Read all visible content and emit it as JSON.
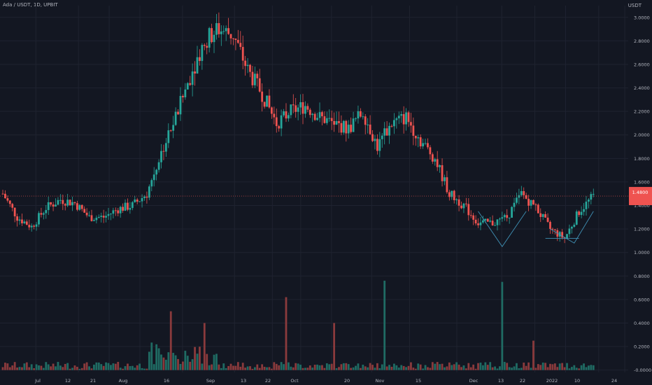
{
  "header": {
    "title": "Ada / USDT, 1D, UPBIT",
    "unit": "USDT"
  },
  "colors": {
    "background": "#131722",
    "grid": "#1f2330",
    "up": "#26a69a",
    "down": "#ef5350",
    "volume_up": "#1f6b63",
    "volume_down": "#8a3a3c",
    "axis_text": "#b2b5be",
    "pattern_lines": "#3f8fb3",
    "price_line": "#ef5350"
  },
  "chart_data": {
    "type": "candlestick",
    "title": "Ada / USDT, 1D, UPBIT",
    "ylabel": "USDT",
    "y_ticks": [
      "3.0000",
      "2.8000",
      "2.6000",
      "2.4000",
      "2.2000",
      "2.0000",
      "1.8000",
      "1.6000",
      "1.4000",
      "1.2000",
      "1.0000",
      "0.8000",
      "0.6000",
      "0.4000",
      "0.2000",
      "-0.0000"
    ],
    "x_ticks": [
      "Jul",
      "12",
      "21",
      "Aug",
      "16",
      "Sep",
      "13",
      "22",
      "Oct",
      "20",
      "Nov",
      "15",
      "Dec",
      "13",
      "22",
      "2022",
      "10",
      "24"
    ],
    "ylim": [
      -0.02,
      3.1
    ],
    "last_price": 1.48,
    "last_price_label": "1.4800",
    "price_series": [
      [
        0,
        1.5
      ],
      [
        6,
        1.3
      ],
      [
        12,
        1.22
      ],
      [
        18,
        1.38
      ],
      [
        24,
        1.45
      ],
      [
        30,
        1.42
      ],
      [
        36,
        1.3
      ],
      [
        42,
        1.3
      ],
      [
        48,
        1.37
      ],
      [
        54,
        1.4
      ],
      [
        60,
        1.5
      ],
      [
        66,
        1.85
      ],
      [
        72,
        2.15
      ],
      [
        78,
        2.5
      ],
      [
        84,
        2.8
      ],
      [
        90,
        2.9
      ],
      [
        96,
        2.85
      ],
      [
        102,
        2.55
      ],
      [
        108,
        2.35
      ],
      [
        114,
        2.1
      ],
      [
        120,
        2.2
      ],
      [
        126,
        2.25
      ],
      [
        132,
        2.15
      ],
      [
        138,
        2.1
      ],
      [
        144,
        2.05
      ],
      [
        150,
        2.2
      ],
      [
        156,
        1.9
      ],
      [
        162,
        2.1
      ],
      [
        168,
        2.15
      ],
      [
        174,
        1.95
      ],
      [
        180,
        1.8
      ],
      [
        186,
        1.5
      ],
      [
        192,
        1.4
      ],
      [
        198,
        1.25
      ],
      [
        204,
        1.25
      ],
      [
        210,
        1.3
      ],
      [
        216,
        1.5
      ],
      [
        222,
        1.38
      ],
      [
        228,
        1.2
      ],
      [
        234,
        1.12
      ],
      [
        240,
        1.35
      ],
      [
        246,
        1.48
      ]
    ],
    "volume_range": [
      0.0,
      0.78
    ],
    "volume_spikes": [
      {
        "day": 70,
        "value": 0.5
      },
      {
        "day": 84,
        "value": 0.4
      },
      {
        "day": 118,
        "value": 0.62
      },
      {
        "day": 138,
        "value": 0.4
      },
      {
        "day": 159,
        "value": 0.76
      },
      {
        "day": 208,
        "value": 0.75
      },
      {
        "day": 221,
        "value": 0.25
      }
    ],
    "grid": true,
    "legend": "none"
  }
}
